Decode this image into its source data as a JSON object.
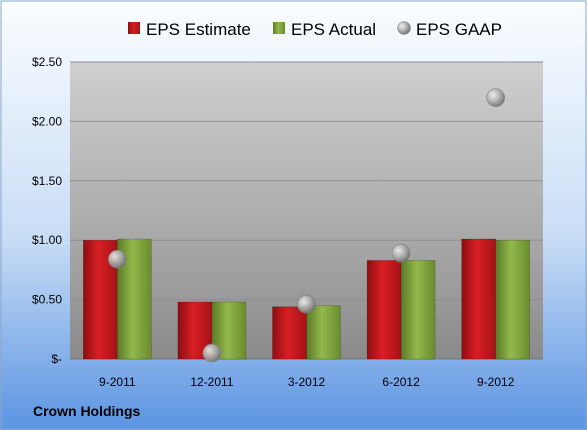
{
  "chart_data": {
    "type": "bar",
    "categories": [
      "9-2011",
      "12-2011",
      "3-2012",
      "6-2012",
      "9-2012"
    ],
    "series": [
      {
        "name": "EPS Estimate",
        "kind": "bar",
        "color": "#c0161b",
        "values": [
          1.0,
          0.48,
          0.44,
          0.83,
          1.01
        ]
      },
      {
        "name": "EPS Actual",
        "kind": "bar",
        "color": "#7fa03c",
        "values": [
          1.01,
          0.48,
          0.45,
          0.83,
          1.0
        ]
      },
      {
        "name": "EPS GAAP",
        "kind": "scatter",
        "color": "#a0a0a0",
        "values": [
          0.84,
          0.05,
          0.46,
          0.89,
          2.2
        ]
      }
    ],
    "yticks": [
      "$-",
      "$0.50",
      "$1.00",
      "$1.50",
      "$2.00",
      "$2.50"
    ],
    "ytick_values": [
      0,
      0.5,
      1.0,
      1.5,
      2.0,
      2.5
    ],
    "ylim": [
      0,
      2.5
    ],
    "grid": true,
    "legend": "top"
  },
  "footer": {
    "company": "Crown Holdings"
  }
}
